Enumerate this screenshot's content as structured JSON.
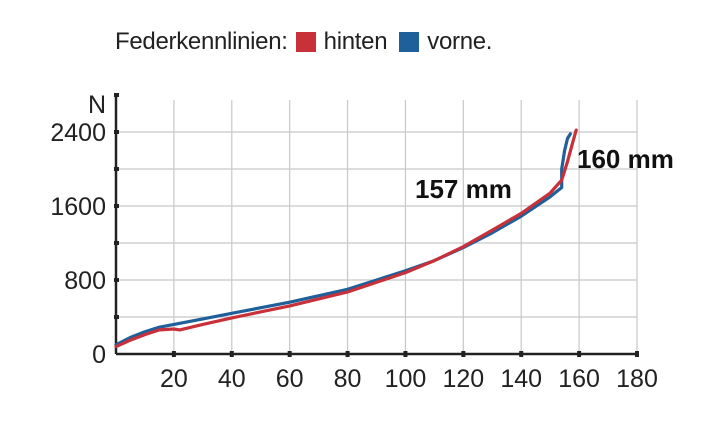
{
  "legend": {
    "title": "Federkennlinien:",
    "items": [
      {
        "label": "hinten",
        "color": "#c8303a"
      },
      {
        "label": "vorne.",
        "color": "#1f5f9a"
      }
    ]
  },
  "chart_data": {
    "type": "line",
    "title": "",
    "xlabel": "",
    "ylabel": "N",
    "xlim": [
      0,
      180
    ],
    "ylim": [
      0,
      2800
    ],
    "x_ticks": [
      20,
      40,
      60,
      80,
      100,
      120,
      140,
      160,
      180
    ],
    "y_ticks": [
      0,
      800,
      1600,
      2400
    ],
    "grid": true,
    "series": [
      {
        "name": "vorne",
        "color": "#1f5f9a",
        "points": [
          [
            0,
            100
          ],
          [
            5,
            180
          ],
          [
            10,
            240
          ],
          [
            15,
            290
          ],
          [
            20,
            320
          ],
          [
            30,
            380
          ],
          [
            40,
            440
          ],
          [
            60,
            560
          ],
          [
            80,
            700
          ],
          [
            100,
            900
          ],
          [
            110,
            1010
          ],
          [
            120,
            1150
          ],
          [
            130,
            1310
          ],
          [
            140,
            1490
          ],
          [
            150,
            1700
          ],
          [
            154,
            1800
          ],
          [
            154,
            2000
          ],
          [
            155,
            2200
          ],
          [
            156,
            2330
          ],
          [
            157,
            2380
          ]
        ]
      },
      {
        "name": "hinten",
        "color": "#c8303a",
        "points": [
          [
            0,
            80
          ],
          [
            5,
            150
          ],
          [
            10,
            210
          ],
          [
            15,
            260
          ],
          [
            20,
            270
          ],
          [
            22,
            260
          ],
          [
            30,
            320
          ],
          [
            40,
            390
          ],
          [
            60,
            520
          ],
          [
            80,
            670
          ],
          [
            100,
            880
          ],
          [
            110,
            1010
          ],
          [
            120,
            1160
          ],
          [
            130,
            1340
          ],
          [
            140,
            1520
          ],
          [
            150,
            1740
          ],
          [
            154,
            1880
          ],
          [
            156,
            2080
          ],
          [
            158,
            2310
          ],
          [
            159,
            2420
          ]
        ]
      }
    ],
    "annotations": [
      {
        "text": "157 mm",
        "x": 157
      },
      {
        "text": "160 mm",
        "x": 160
      }
    ]
  }
}
